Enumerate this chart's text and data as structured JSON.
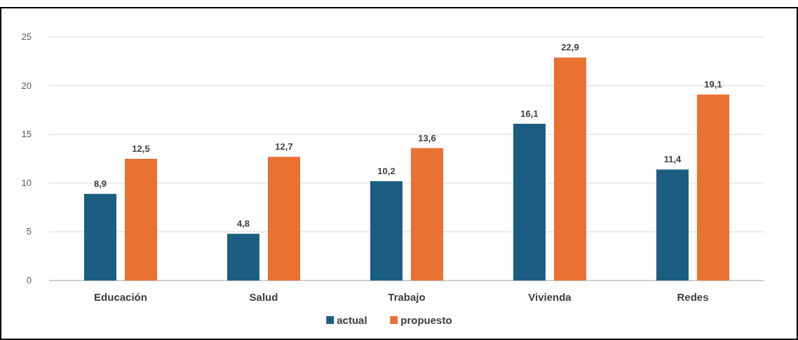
{
  "chart_data": {
    "type": "bar",
    "categories": [
      "Educación",
      "Salud",
      "Trabajo",
      "Vivienda",
      "Redes"
    ],
    "series": [
      {
        "name": "actual",
        "color": "#1b5e82",
        "values": [
          8.9,
          4.8,
          10.2,
          16.1,
          11.4
        ],
        "value_labels": [
          "8,9",
          "4,8",
          "10,2",
          "16,1",
          "11,4"
        ]
      },
      {
        "name": "propuesto",
        "color": "#e97132",
        "values": [
          12.5,
          12.7,
          13.6,
          22.9,
          19.1
        ],
        "value_labels": [
          "12,5",
          "12,7",
          "13,6",
          "22,9",
          "19,1"
        ]
      }
    ],
    "ylim": [
      0,
      25
    ],
    "yticks": [
      0,
      5,
      10,
      15,
      20,
      25
    ],
    "grid": "y",
    "legend": "bottom"
  }
}
